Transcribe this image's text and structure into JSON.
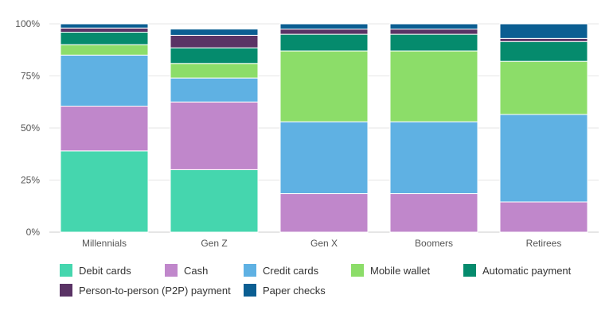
{
  "chart_data": {
    "type": "bar",
    "stacked": true,
    "title": "",
    "xlabel": "",
    "ylabel": "",
    "ylim": [
      0,
      100
    ],
    "yticks": [
      0,
      25,
      50,
      75,
      100
    ],
    "ytick_labels": [
      "0%",
      "25%",
      "50%",
      "75%",
      "100%"
    ],
    "grid": true,
    "legend_position": "bottom",
    "categories": [
      "Millennials",
      "Gen Z",
      "Gen X",
      "Boomers",
      "Retirees"
    ],
    "series": [
      {
        "name": "Debit cards",
        "color": "#45d6ae",
        "values": [
          39,
          30,
          0,
          0,
          0
        ]
      },
      {
        "name": "Cash",
        "color": "#c087cb",
        "values": [
          21.5,
          32.5,
          18.5,
          18.5,
          14.5
        ]
      },
      {
        "name": "Credit cards",
        "color": "#5fb1e3",
        "values": [
          24.5,
          11.5,
          34.5,
          34.5,
          42
        ]
      },
      {
        "name": "Mobile wallet",
        "color": "#8cdd69",
        "values": [
          5,
          7,
          34,
          34,
          25.5
        ]
      },
      {
        "name": "Automatic payment",
        "color": "#058b6d",
        "values": [
          6,
          7.5,
          8,
          8,
          9.5
        ]
      },
      {
        "name": "Person-to-person (P2P) payment",
        "color": "#5a3365",
        "values": [
          2,
          6,
          2.5,
          2.5,
          1.5
        ]
      },
      {
        "name": "Paper checks",
        "color": "#0b5e92",
        "values": [
          2,
          3,
          2.5,
          2.5,
          7
        ]
      }
    ]
  },
  "legend": [
    "Debit cards",
    "Cash",
    "Credit cards",
    "Mobile wallet",
    "Automatic payment",
    "Person-to-person (P2P) payment",
    "Paper checks"
  ]
}
